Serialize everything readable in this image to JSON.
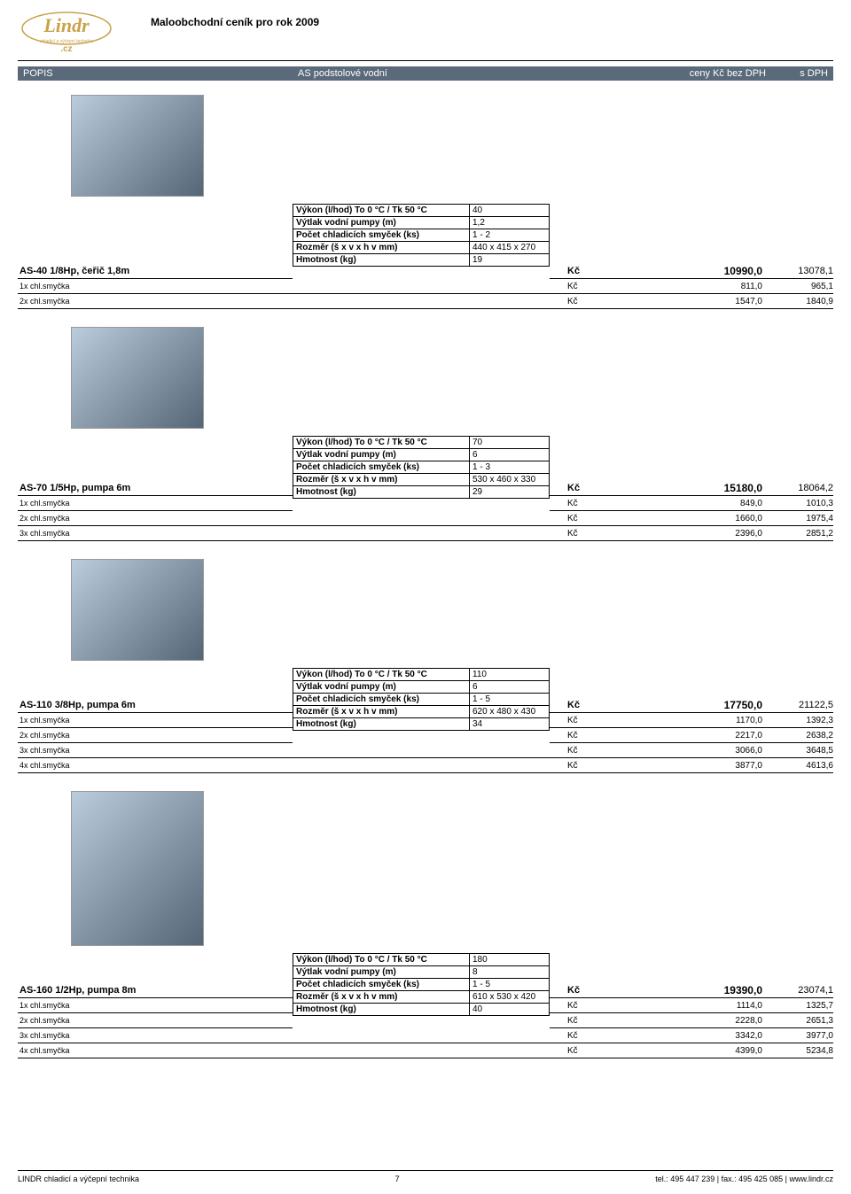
{
  "header": {
    "logo_brand": "Lindr",
    "logo_sub": "chladicí a výčepní technika",
    "logo_cz": ".cz",
    "title": "Maloobchodní ceník pro rok  2009"
  },
  "bar": {
    "popis": "POPIS",
    "mid": "AS  podstolové vodní",
    "cena": "ceny Kč bez DPH",
    "dph": "s DPH"
  },
  "spec_labels": {
    "vykon": "Výkon (l/hod)   To 0 °C / Tk 50 °C",
    "vytlak": "Výtlak vodní pumpy (m)",
    "pocet": "Počet chladicích smyček (ks)",
    "rozmer": "Rozměr (š x v x h v mm)",
    "hmotnost": "Hmotnost (kg)"
  },
  "products": [
    {
      "image_large": false,
      "name": "AS-40 1/8Hp, čeřič 1,8m",
      "specs": [
        {
          "key_ref": "vykon",
          "val": "40"
        },
        {
          "key_ref": "vytlak",
          "val": "1,2"
        },
        {
          "key_ref": "pocet",
          "val": "1 - 2"
        },
        {
          "key_ref": "rozmer",
          "val": "440 x 415 x 270"
        },
        {
          "key_ref": "hmotnost",
          "val": "19"
        }
      ],
      "main_price": {
        "label": "AS-40 1/8Hp, čeřič 1,8m",
        "kc": "Kč",
        "price": "10990,0",
        "dph": "13078,1"
      },
      "sub_prices": [
        {
          "label": "1x chl.smyčka",
          "kc": "Kč",
          "price": "811,0",
          "dph": "965,1"
        },
        {
          "label": "2x chl.smyčka",
          "kc": "Kč",
          "price": "1547,0",
          "dph": "1840,9"
        }
      ],
      "spec_align_index": 4
    },
    {
      "image_large": false,
      "name": "AS-70 1/5Hp, pumpa 6m",
      "specs": [
        {
          "key_ref": "vykon",
          "val": "70"
        },
        {
          "key_ref": "vytlak",
          "val": "6"
        },
        {
          "key_ref": "pocet",
          "val": "1 - 3"
        },
        {
          "key_ref": "rozmer",
          "val": "530 x 460 x 330"
        },
        {
          "key_ref": "hmotnost",
          "val": "29"
        }
      ],
      "main_price": {
        "label": "AS-70 1/5Hp, pumpa 6m",
        "kc": "Kč",
        "price": "15180,0",
        "dph": "18064,2"
      },
      "sub_prices": [
        {
          "label": "1x chl.smyčka",
          "kc": "Kč",
          "price": "849,0",
          "dph": "1010,3"
        },
        {
          "label": "2x chl.smyčka",
          "kc": "Kč",
          "price": "1660,0",
          "dph": "1975,4"
        },
        {
          "label": "3x chl.smyčka",
          "kc": "Kč",
          "price": "2396,0",
          "dph": "2851,2"
        }
      ],
      "spec_align_index": 3
    },
    {
      "image_large": false,
      "name": "AS-110 3/8Hp, pumpa 6m",
      "specs": [
        {
          "key_ref": "vykon",
          "val": "110"
        },
        {
          "key_ref": "vytlak",
          "val": "6"
        },
        {
          "key_ref": "pocet",
          "val": "1 - 5"
        },
        {
          "key_ref": "rozmer",
          "val": "620 x 480 x 430"
        },
        {
          "key_ref": "hmotnost",
          "val": "34"
        }
      ],
      "main_price": {
        "label": "AS-110 3/8Hp, pumpa 6m",
        "kc": "Kč",
        "price": "17750,0",
        "dph": "21122,5"
      },
      "sub_prices": [
        {
          "label": "1x chl.smyčka",
          "kc": "Kč",
          "price": "1170,0",
          "dph": "1392,3"
        },
        {
          "label": "2x chl.smyčka",
          "kc": "Kč",
          "price": "2217,0",
          "dph": "2638,2"
        },
        {
          "label": "3x chl.smyčka",
          "kc": "Kč",
          "price": "3066,0",
          "dph": "3648,5"
        },
        {
          "label": "4x chl.smyčka",
          "kc": "Kč",
          "price": "3877,0",
          "dph": "4613,6"
        }
      ],
      "spec_align_index": 2
    },
    {
      "image_large": true,
      "name": "AS-160 1/2Hp, pumpa 8m",
      "specs": [
        {
          "key_ref": "vykon",
          "val": "180"
        },
        {
          "key_ref": "vytlak",
          "val": "8"
        },
        {
          "key_ref": "pocet",
          "val": "1 - 5"
        },
        {
          "key_ref": "rozmer",
          "val": "610 x 530 x 420"
        },
        {
          "key_ref": "hmotnost",
          "val": "40"
        }
      ],
      "main_price": {
        "label": "AS-160 1/2Hp, pumpa 8m",
        "kc": "Kč",
        "price": "19390,0",
        "dph": "23074,1"
      },
      "sub_prices": [
        {
          "label": "1x chl.smyčka",
          "kc": "Kč",
          "price": "1114,0",
          "dph": "1325,7"
        },
        {
          "label": "2x chl.smyčka",
          "kc": "Kč",
          "price": "2228,0",
          "dph": "2651,3"
        },
        {
          "label": "3x chl.smyčka",
          "kc": "Kč",
          "price": "3342,0",
          "dph": "3977,0"
        },
        {
          "label": "4x chl.smyčka",
          "kc": "Kč",
          "price": "4399,0",
          "dph": "5234,8"
        }
      ],
      "spec_align_index": 2
    }
  ],
  "footer": {
    "left": "LINDR chladicí a výčepní technika",
    "page": "7",
    "right": "tel.: 495 447 239 | fax.: 495 425 085 | www.lindr.cz"
  },
  "colors": {
    "bar_bg": "#5a6a7a",
    "logo_gold": "#c9a24a"
  }
}
